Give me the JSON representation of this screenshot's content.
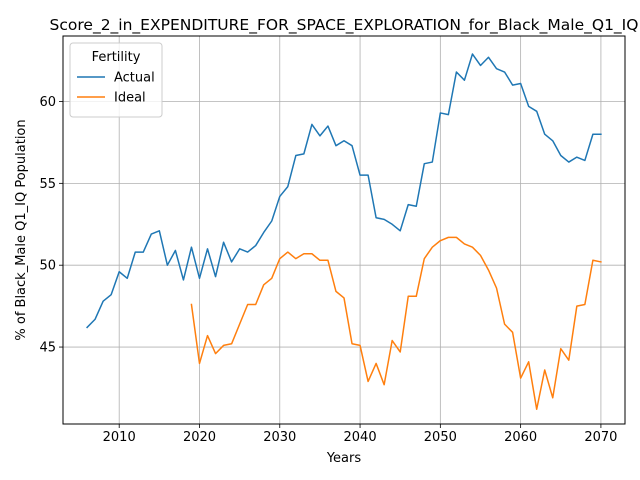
{
  "chart_data": {
    "type": "line",
    "title": "Score_2_in_EXPENDITURE_FOR_SPACE_EXPLORATION_for_Black_Male_Q1_IQ",
    "xlabel": "Years",
    "ylabel": "% of Black_Male Q1_IQ Population",
    "xlim": [
      2003,
      2073
    ],
    "ylim": [
      40.3,
      64.0
    ],
    "xticks": [
      2010,
      2020,
      2030,
      2040,
      2050,
      2060,
      2070
    ],
    "yticks": [
      45,
      50,
      55,
      60
    ],
    "grid": true,
    "legend": {
      "title": "Fertility",
      "placement": "top-left"
    },
    "series": [
      {
        "name": "Actual",
        "color": "#1f77b4",
        "x": [
          2006,
          2007,
          2008,
          2009,
          2010,
          2011,
          2012,
          2013,
          2014,
          2015,
          2016,
          2017,
          2018,
          2019,
          2020,
          2021,
          2022,
          2023,
          2024,
          2025,
          2026,
          2027,
          2028,
          2029,
          2030,
          2031,
          2032,
          2033,
          2034,
          2035,
          2036,
          2037,
          2038,
          2039,
          2040,
          2041,
          2042,
          2043,
          2044,
          2045,
          2046,
          2047,
          2048,
          2049,
          2050,
          2051,
          2052,
          2053,
          2054,
          2055,
          2056,
          2057,
          2058,
          2059,
          2060,
          2061,
          2062,
          2063,
          2064,
          2065,
          2066,
          2067,
          2068,
          2069,
          2070
        ],
        "values": [
          46.2,
          46.7,
          47.8,
          48.2,
          49.6,
          49.2,
          50.8,
          50.8,
          51.9,
          52.1,
          50.0,
          50.9,
          49.1,
          51.1,
          49.2,
          51.0,
          49.3,
          51.4,
          50.2,
          51.0,
          50.8,
          51.2,
          52.0,
          52.7,
          54.2,
          54.8,
          56.7,
          56.8,
          58.6,
          57.9,
          58.5,
          57.3,
          57.6,
          57.3,
          55.5,
          55.5,
          52.9,
          52.8,
          52.5,
          52.1,
          53.7,
          53.6,
          56.2,
          56.3,
          59.3,
          59.2,
          61.8,
          61.3,
          62.9,
          62.2,
          62.7,
          62.0,
          61.8,
          61.0,
          61.1,
          59.7,
          59.4,
          58.0,
          57.6,
          56.7,
          56.3,
          56.6,
          56.4,
          58.0,
          58.0
        ]
      },
      {
        "name": "Ideal",
        "color": "#ff7f0e",
        "x": [
          2019,
          2020,
          2021,
          2022,
          2023,
          2024,
          2025,
          2026,
          2027,
          2028,
          2029,
          2030,
          2031,
          2032,
          2033,
          2034,
          2035,
          2036,
          2037,
          2038,
          2039,
          2040,
          2041,
          2042,
          2043,
          2044,
          2045,
          2046,
          2047,
          2048,
          2049,
          2050,
          2051,
          2052,
          2053,
          2054,
          2055,
          2056,
          2057,
          2058,
          2059,
          2060,
          2061,
          2062,
          2063,
          2064,
          2065,
          2066,
          2067,
          2068,
          2069,
          2070
        ],
        "values": [
          47.6,
          44.0,
          45.7,
          44.6,
          45.1,
          45.2,
          46.4,
          47.6,
          47.6,
          48.8,
          49.2,
          50.4,
          50.8,
          50.4,
          50.7,
          50.7,
          50.3,
          50.3,
          48.4,
          48.0,
          45.2,
          45.1,
          42.9,
          44.0,
          42.7,
          45.4,
          44.7,
          48.1,
          48.1,
          50.4,
          51.1,
          51.5,
          51.7,
          51.7,
          51.3,
          51.1,
          50.6,
          49.7,
          48.6,
          46.4,
          45.9,
          43.1,
          44.1,
          41.2,
          43.6,
          41.9,
          44.9,
          44.2,
          47.5,
          47.6,
          50.3,
          50.2
        ]
      }
    ]
  }
}
